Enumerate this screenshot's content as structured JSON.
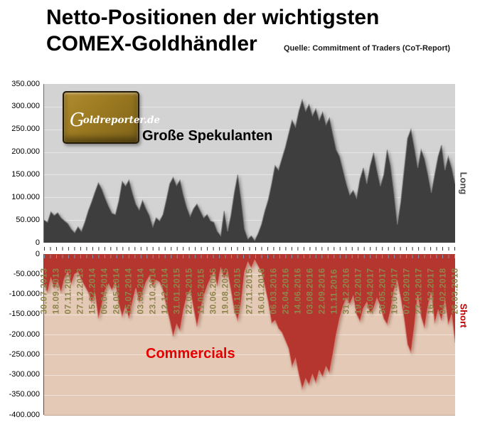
{
  "title": {
    "line1": "Netto-Positionen der wichtigsten",
    "line2": "COMEX-Goldhändler",
    "source": "Quelle: Commitment of Traders (CoT-Report)"
  },
  "logo": {
    "text_g": "G",
    "text_rest": "oldreporter.de"
  },
  "labels": {
    "speculators": "Große Spekulanten",
    "commercials": "Commercials",
    "long": "Long",
    "short": "Short"
  },
  "colors": {
    "top_plot_bg": "#d3d3d3",
    "top_area": "#3e3e3e",
    "top_edge": "#7a7a7a",
    "bottom_plot_bg": "#e3c9b6",
    "bottom_area": "#b5362e",
    "bottom_edge": "#de8175",
    "date_text": "#8f854d",
    "commercials_text": "#e60000",
    "short_text": "#c00000",
    "long_text": "#4a4a4a",
    "top_grid": "#e6e6e6",
    "bottom_grid": "#f0e2d7",
    "top_tick": "#333333",
    "bottom_tick": "#7f99ad"
  },
  "chart_data": [
    {
      "type": "area",
      "name": "Große Spekulanten (Long)",
      "values_unit": "contracts, values listed in thousands",
      "ylim": [
        0,
        350000
      ],
      "grid": true,
      "yticks": [
        {
          "label": "350.000",
          "v": 350
        },
        {
          "label": "300.000",
          "v": 300
        },
        {
          "label": "250.000",
          "v": 250
        },
        {
          "label": "200.000",
          "v": 200
        },
        {
          "label": "150.000",
          "v": 150
        },
        {
          "label": "100.000",
          "v": 100
        },
        {
          "label": "50.000",
          "v": 50
        },
        {
          "label": "0",
          "v": 0
        }
      ],
      "values": [
        50,
        45,
        68,
        60,
        66,
        55,
        48,
        42,
        30,
        22,
        35,
        25,
        45,
        70,
        90,
        112,
        132,
        118,
        98,
        80,
        65,
        62,
        92,
        135,
        125,
        138,
        110,
        85,
        72,
        93,
        75,
        60,
        35,
        55,
        48,
        62,
        95,
        130,
        144,
        126,
        138,
        105,
        78,
        58,
        75,
        85,
        70,
        55,
        62,
        48,
        45,
        25,
        15,
        70,
        25,
        60,
        110,
        150,
        95,
        30,
        8,
        15,
        5,
        20,
        40,
        70,
        95,
        130,
        170,
        160,
        185,
        210,
        240,
        270,
        255,
        290,
        315,
        290,
        305,
        280,
        295,
        270,
        288,
        260,
        275,
        240,
        205,
        190,
        160,
        130,
        105,
        115,
        98,
        140,
        165,
        130,
        170,
        198,
        160,
        125,
        150,
        205,
        170,
        110,
        40,
        90,
        160,
        230,
        250,
        210,
        165,
        205,
        185,
        150,
        110,
        150,
        190,
        215,
        160,
        190,
        165,
        130
      ]
    },
    {
      "type": "area",
      "name": "Commercials (Short)",
      "values_unit": "contracts, values listed in thousands",
      "ylim": [
        -400000,
        0
      ],
      "grid": true,
      "yticks": [
        {
          "label": "0",
          "v": 0
        },
        {
          "label": "-50.000",
          "v": -50
        },
        {
          "label": "-100.000",
          "v": -100
        },
        {
          "label": "-150.000",
          "v": -150
        },
        {
          "label": "-200.000",
          "v": -200
        },
        {
          "label": "-250.000",
          "v": -250
        },
        {
          "label": "-300.000",
          "v": -300
        },
        {
          "label": "-350.000",
          "v": -350
        },
        {
          "label": "-400.000",
          "v": -400
        }
      ],
      "values": [
        -75,
        -95,
        -60,
        -85,
        -70,
        -95,
        -60,
        -45,
        -75,
        -50,
        -45,
        -65,
        -80,
        -95,
        -120,
        -100,
        -160,
        -125,
        -90,
        -75,
        -90,
        -70,
        -125,
        -155,
        -130,
        -160,
        -120,
        -85,
        -120,
        -95,
        -70,
        -55,
        -80,
        -65,
        -70,
        -90,
        -130,
        -165,
        -205,
        -175,
        -190,
        -140,
        -105,
        -90,
        -135,
        -180,
        -140,
        -105,
        -80,
        -60,
        -45,
        -80,
        -35,
        -60,
        -45,
        -90,
        -140,
        -165,
        -120,
        -45,
        -20,
        -35,
        -15,
        -30,
        -45,
        -80,
        -120,
        -172,
        -165,
        -185,
        -195,
        -215,
        -235,
        -280,
        -260,
        -300,
        -335,
        -310,
        -325,
        -300,
        -320,
        -290,
        -305,
        -280,
        -295,
        -250,
        -200,
        -160,
        -130,
        -110,
        -125,
        -105,
        -150,
        -167,
        -135,
        -120,
        -147,
        -135,
        -110,
        -130,
        -161,
        -175,
        -140,
        -90,
        -67,
        -110,
        -160,
        -225,
        -245,
        -180,
        -102,
        -156,
        -184,
        -130,
        -95,
        -172,
        -140,
        -165,
        -115,
        -175,
        -150,
        -220
      ]
    }
  ],
  "x_axis": {
    "categories": [
      "30.07.2013",
      "18.09.2013",
      "07.11.2013",
      "27.12.2013",
      "15.02.2014",
      "06.04.2014",
      "26.05.2014",
      "15.07.2014",
      "03.09.2014",
      "23.10.2014",
      "12.12.2014",
      "31.01.2015",
      "22.03.2015",
      "11.05.2015",
      "30.06.2015",
      "19.08.2015",
      "08.10.2015",
      "27.11.2015",
      "16.01.2016",
      "06.03.2016",
      "25.04.2016",
      "14.06.2016",
      "03.08.2016",
      "22.09.2016",
      "11.11.2016",
      "31.12.2016",
      "19.02.2017",
      "10.04.2017",
      "30.05.2017",
      "19.07.2017",
      "07.09.2017",
      "27.10.2017",
      "16.12.2017",
      "04.02.2018",
      "26.03.2018"
    ],
    "minor_ticks": 69
  }
}
